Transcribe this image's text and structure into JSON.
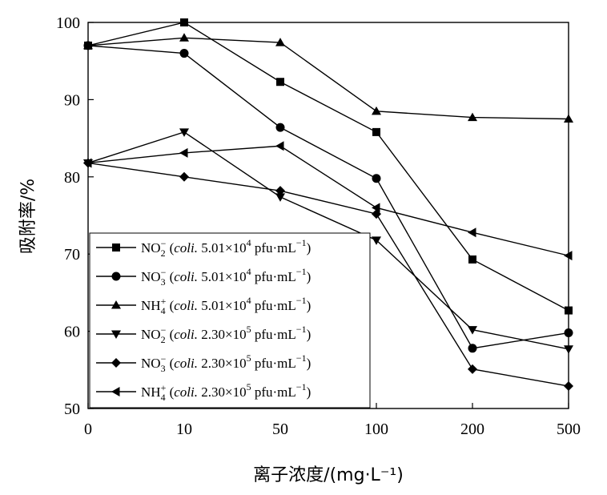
{
  "chart_data": {
    "type": "line",
    "categories": [
      "0",
      "10",
      "50",
      "100",
      "200",
      "500"
    ],
    "ylabel": "吸附率/%",
    "xlabel": "离子浓度/(mg·L⁻¹)",
    "ylim": [
      50,
      100
    ],
    "yticks": [
      "50",
      "60",
      "70",
      "80",
      "90",
      "100"
    ],
    "grid": false,
    "legend_position": "bottom-left",
    "series": [
      {
        "ion": "NO",
        "sub": "2",
        "sup": "−",
        "coli": "5.01×10",
        "exp": "4",
        "marker": "square",
        "values": [
          97.0,
          100.0,
          92.3,
          85.8,
          69.3,
          62.7
        ]
      },
      {
        "ion": "NO",
        "sub": "3",
        "sup": "−",
        "coli": "5.01×10",
        "exp": "4",
        "marker": "circle",
        "values": [
          97.0,
          96.0,
          86.4,
          79.8,
          57.8,
          59.8
        ]
      },
      {
        "ion": "NH",
        "sub": "4",
        "sup": "+",
        "coli": "5.01×10",
        "exp": "4",
        "marker": "triangle-up",
        "values": [
          97.0,
          98.0,
          97.4,
          88.5,
          87.7,
          87.5
        ]
      },
      {
        "ion": "NO",
        "sub": "2",
        "sup": "−",
        "coli": "2.30×10",
        "exp": "5",
        "marker": "triangle-down",
        "values": [
          81.8,
          85.8,
          77.4,
          71.8,
          60.2,
          57.7
        ]
      },
      {
        "ion": "NO",
        "sub": "3",
        "sup": "−",
        "coli": "2.30×10",
        "exp": "5",
        "marker": "diamond",
        "values": [
          81.8,
          80.0,
          78.2,
          75.2,
          55.1,
          52.9
        ]
      },
      {
        "ion": "NH",
        "sub": "4",
        "sup": "+",
        "coli": "2.30×10",
        "exp": "5",
        "marker": "triangle-left",
        "values": [
          81.8,
          83.1,
          84.0,
          76.0,
          72.8,
          69.8
        ]
      }
    ],
    "legend_text": {
      "coli_label": "coli.",
      "unit": "pfu·mL",
      "unit_exp": "−1"
    }
  }
}
